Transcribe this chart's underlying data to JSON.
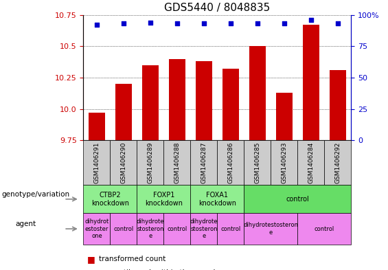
{
  "title": "GDS5440 / 8048835",
  "samples": [
    "GSM1406291",
    "GSM1406290",
    "GSM1406289",
    "GSM1406288",
    "GSM1406287",
    "GSM1406286",
    "GSM1406285",
    "GSM1406293",
    "GSM1406284",
    "GSM1406292"
  ],
  "transformed_counts": [
    9.97,
    10.2,
    10.35,
    10.4,
    10.38,
    10.32,
    10.5,
    10.13,
    10.67,
    10.31
  ],
  "percentile_ranks": [
    92,
    93,
    94,
    93,
    93,
    93,
    93,
    93,
    96,
    93
  ],
  "ylim_left": [
    9.75,
    10.75
  ],
  "ylim_right": [
    0,
    100
  ],
  "yticks_left": [
    9.75,
    10.0,
    10.25,
    10.5,
    10.75
  ],
  "yticks_right": [
    0,
    25,
    50,
    75,
    100
  ],
  "bar_color": "#cc0000",
  "dot_color": "#0000cc",
  "bg_color": "#ffffff",
  "sample_box_color": "#cccccc",
  "genotype_groups": [
    {
      "label": "CTBP2\nknockdown",
      "start": 0,
      "end": 2,
      "color": "#90EE90"
    },
    {
      "label": "FOXP1\nknockdown",
      "start": 2,
      "end": 4,
      "color": "#90EE90"
    },
    {
      "label": "FOXA1\nknockdown",
      "start": 4,
      "end": 6,
      "color": "#90EE90"
    },
    {
      "label": "control",
      "start": 6,
      "end": 10,
      "color": "#66dd66"
    }
  ],
  "agent_groups": [
    {
      "label": "dihydrot\nestoster\none",
      "start": 0,
      "end": 1,
      "color": "#ee88ee"
    },
    {
      "label": "control",
      "start": 1,
      "end": 2,
      "color": "#ee88ee"
    },
    {
      "label": "dihydrote\nstosteron\ne",
      "start": 2,
      "end": 3,
      "color": "#ee88ee"
    },
    {
      "label": "control",
      "start": 3,
      "end": 4,
      "color": "#ee88ee"
    },
    {
      "label": "dihydrote\nstosteron\ne",
      "start": 4,
      "end": 5,
      "color": "#ee88ee"
    },
    {
      "label": "control",
      "start": 5,
      "end": 6,
      "color": "#ee88ee"
    },
    {
      "label": "dihydrotestosteron\ne",
      "start": 6,
      "end": 8,
      "color": "#ee88ee"
    },
    {
      "label": "control",
      "start": 8,
      "end": 10,
      "color": "#ee88ee"
    }
  ],
  "left_label_color": "#cc0000",
  "right_label_color": "#0000cc",
  "title_fontsize": 11,
  "tick_fontsize": 8,
  "sample_fontsize": 6.5,
  "annotation_fontsize": 7
}
